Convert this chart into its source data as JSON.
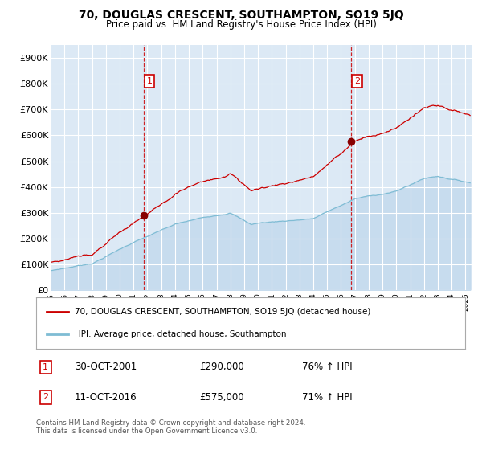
{
  "title": "70, DOUGLAS CRESCENT, SOUTHAMPTON, SO19 5JQ",
  "subtitle": "Price paid vs. HM Land Registry's House Price Index (HPI)",
  "transaction1": {
    "date": "30-OCT-2001",
    "price": 290000,
    "label": "1",
    "hpi_pct": "76% ↑ HPI"
  },
  "transaction2": {
    "date": "11-OCT-2016",
    "price": 575000,
    "label": "2",
    "hpi_pct": "71% ↑ HPI"
  },
  "legend_red": "70, DOUGLAS CRESCENT, SOUTHAMPTON, SO19 5JQ (detached house)",
  "legend_blue": "HPI: Average price, detached house, Southampton",
  "footer": "Contains HM Land Registry data © Crown copyright and database right 2024.\nThis data is licensed under the Open Government Licence v3.0.",
  "bg_color": "#ffffff",
  "plot_bg": "#dce9f5",
  "red_color": "#cc0000",
  "blue_color": "#7fbcd4",
  "grid_color": "#ffffff",
  "ylim": [
    0,
    950000
  ],
  "yticks": [
    0,
    100000,
    200000,
    300000,
    400000,
    500000,
    600000,
    700000,
    800000,
    900000
  ],
  "ytick_labels": [
    "£0",
    "£100K",
    "£200K",
    "£300K",
    "£400K",
    "£500K",
    "£600K",
    "£700K",
    "£800K",
    "£900K"
  ],
  "xlim_start": 1995.0,
  "xlim_end": 2025.5,
  "xticks": [
    1995,
    1996,
    1997,
    1998,
    1999,
    2000,
    2001,
    2002,
    2003,
    2004,
    2005,
    2006,
    2007,
    2008,
    2009,
    2010,
    2011,
    2012,
    2013,
    2014,
    2015,
    2016,
    2017,
    2018,
    2019,
    2020,
    2021,
    2022,
    2023,
    2024,
    2025
  ]
}
